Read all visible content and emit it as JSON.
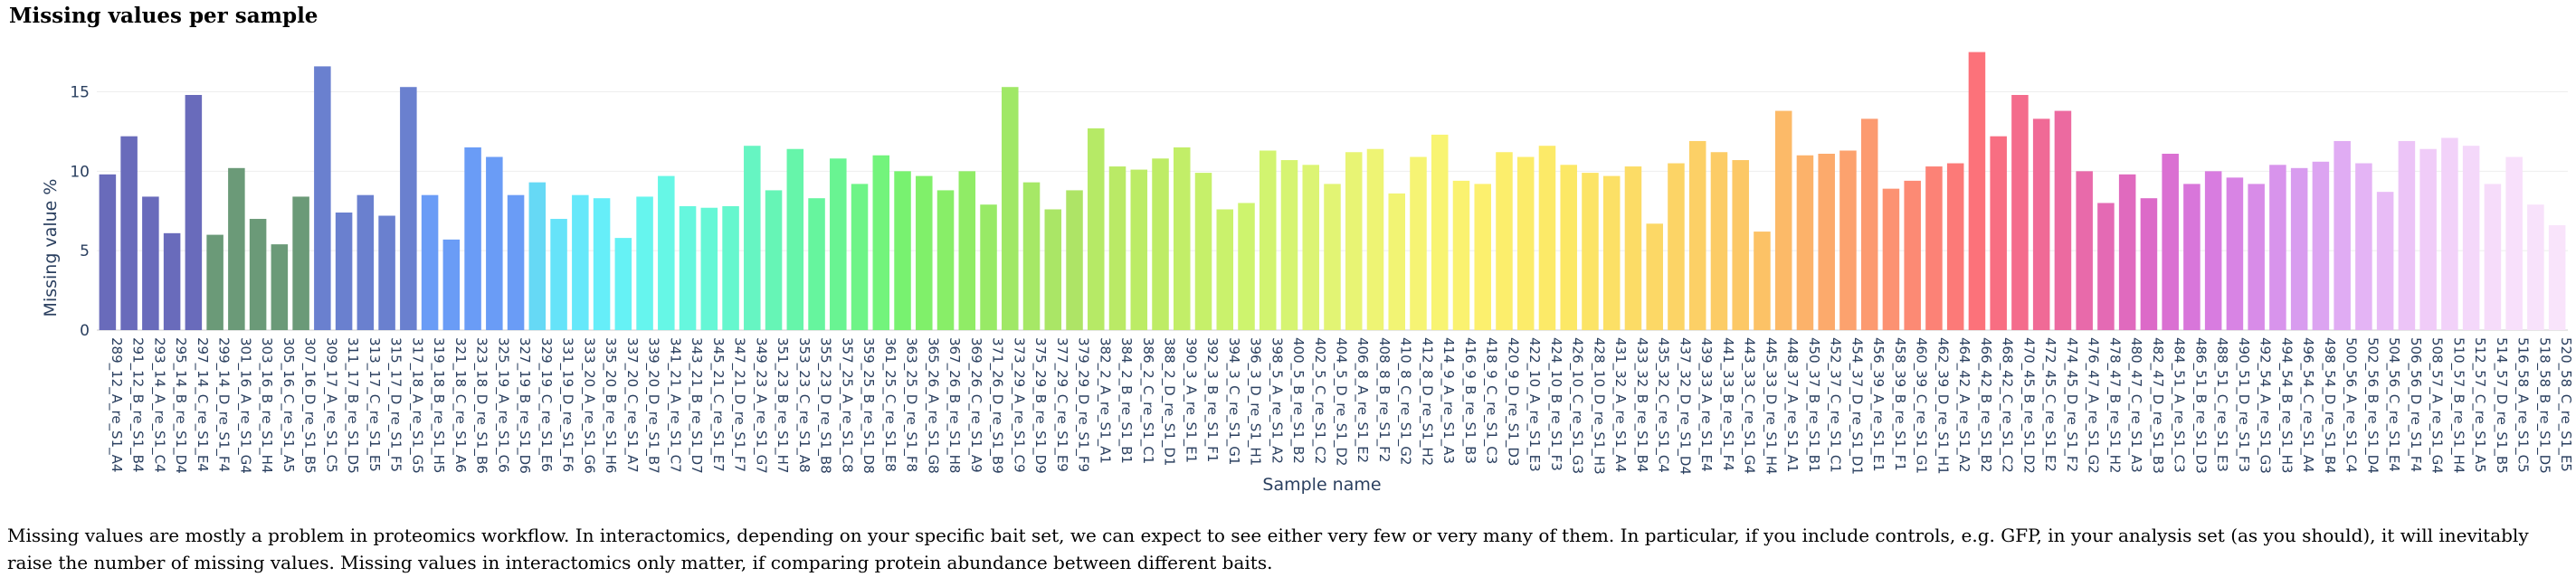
{
  "title": "Missing values per sample",
  "description": "Missing values are mostly a problem in proteomics workflow. In interactomics, depending on your specific bait set, we can expect to see either very few or very many of them. In particular, if you include controls, e.g. GFP, in your analysis set (as you should), it will inevitably raise the number of missing values. Missing values in interactomics only matter, if comparing protein abundance between different baits.",
  "chart_data": {
    "type": "bar",
    "xlabel": "Sample name",
    "ylabel": "Missing value %",
    "ylim": [
      0,
      18.5
    ],
    "yticks": [
      0,
      5,
      10,
      15
    ],
    "grid": true,
    "categories": [
      "289_12_A_re_S1_A4",
      "291_12_B_re_S1_B4",
      "293_14_A_re_S1_C4",
      "295_14_B_re_S1_D4",
      "297_14_C_re_S1_E4",
      "299_14_D_re_S1_F4",
      "301_16_A_re_S1_G4",
      "303_16_B_re_S1_H4",
      "305_16_C_re_S1_A5",
      "307_16_D_re_S1_B5",
      "309_17_A_re_S1_C5",
      "311_17_B_re_S1_D5",
      "313_17_C_re_S1_E5",
      "315_17_D_re_S1_F5",
      "317_18_A_re_S1_G5",
      "319_18_B_re_S1_H5",
      "321_18_C_re_S1_A6",
      "323_18_D_re_S1_B6",
      "325_19_A_re_S1_C6",
      "327_19_B_re_S1_D6",
      "329_19_C_re_S1_E6",
      "331_19_D_re_S1_F6",
      "333_20_A_re_S1_G6",
      "335_20_B_re_S1_H6",
      "337_20_C_re_S1_A7",
      "339_20_D_re_S1_B7",
      "341_21_A_re_S1_C7",
      "343_21_B_re_S1_D7",
      "345_21_C_re_S1_E7",
      "347_21_D_re_S1_F7",
      "349_23_A_re_S1_G7",
      "351_23_B_re_S1_H7",
      "353_23_C_re_S1_A8",
      "355_23_D_re_S1_B8",
      "357_25_A_re_S1_C8",
      "359_25_B_re_S1_D8",
      "361_25_C_re_S1_E8",
      "363_25_D_re_S1_F8",
      "365_26_A_re_S1_G8",
      "367_26_B_re_S1_H8",
      "369_26_C_re_S1_A9",
      "371_26_D_re_S1_B9",
      "373_29_A_re_S1_C9",
      "375_29_B_re_S1_D9",
      "377_29_C_re_S1_E9",
      "379_29_D_re_S1_F9",
      "382_2_A_re_S1_A1",
      "384_2_B_re_S1_B1",
      "386_2_C_re_S1_C1",
      "388_2_D_re_S1_D1",
      "390_3_A_re_S1_E1",
      "392_3_B_re_S1_F1",
      "394_3_C_re_S1_G1",
      "396_3_D_re_S1_H1",
      "398_5_A_re_S1_A2",
      "400_5_B_re_S1_B2",
      "402_5_C_re_S1_C2",
      "404_5_D_re_S1_D2",
      "406_8_A_re_S1_E2",
      "408_8_B_re_S1_F2",
      "410_8_C_re_S1_G2",
      "412_8_D_re_S1_H2",
      "414_9_A_re_S1_A3",
      "416_9_B_re_S1_B3",
      "418_9_C_re_S1_C3",
      "420_9_D_re_S1_D3",
      "422_10_A_re_S1_E3",
      "424_10_B_re_S1_F3",
      "426_10_C_re_S1_G3",
      "428_10_D_re_S1_H3",
      "431_32_A_re_S1_A4",
      "433_32_B_re_S1_B4",
      "435_32_C_re_S1_C4",
      "437_32_D_re_S1_D4",
      "439_33_A_re_S1_E4",
      "441_33_B_re_S1_F4",
      "443_33_C_re_S1_G4",
      "445_33_D_re_S1_H4",
      "448_37_A_re_S1_A1",
      "450_37_B_re_S1_B1",
      "452_37_C_re_S1_C1",
      "454_37_D_re_S1_D1",
      "456_39_A_re_S1_E1",
      "458_39_B_re_S1_F1",
      "460_39_C_re_S1_G1",
      "462_39_D_re_S1_H1",
      "464_42_A_re_S1_A2",
      "466_42_B_re_S1_B2",
      "468_42_C_re_S1_C2",
      "470_45_B_re_S1_D2",
      "472_45_C_re_S1_E2",
      "474_45_D_re_S1_F2",
      "476_47_A_re_S1_G2",
      "478_47_B_re_S1_H2",
      "480_47_C_re_S1_A3",
      "482_47_D_re_S1_B3",
      "484_51_A_re_S1_C3",
      "486_51_B_re_S1_D3",
      "488_51_C_re_S1_E3",
      "490_51_D_re_S1_F3",
      "492_54_A_re_S1_G3",
      "494_54_B_re_S1_H3",
      "496_54_C_re_S1_A4",
      "498_54_D_re_S1_B4",
      "500_56_A_re_S1_C4",
      "502_56_B_re_S1_D4",
      "504_56_C_re_S1_E4",
      "506_56_D_re_S1_F4",
      "508_57_A_re_S1_G4",
      "510_57_B_re_S1_H4",
      "512_57_C_re_S1_A5",
      "514_57_D_re_S1_B5",
      "516_58_A_re_S1_C5",
      "518_58_B_re_S1_D5",
      "520_58_C_re_S1_E5"
    ],
    "values": [
      9.8,
      12.2,
      8.4,
      6.1,
      14.8,
      6.0,
      10.2,
      7.0,
      5.4,
      8.4,
      16.6,
      7.4,
      8.5,
      7.2,
      15.3,
      8.5,
      5.7,
      11.5,
      10.9,
      8.5,
      9.3,
      7.0,
      8.5,
      8.3,
      5.8,
      8.4,
      9.7,
      7.8,
      7.7,
      7.8,
      11.6,
      8.8,
      11.4,
      8.3,
      10.8,
      9.2,
      11.0,
      10.0,
      9.7,
      8.8,
      10.0,
      7.9,
      15.3,
      9.3,
      7.6,
      8.8,
      12.7,
      10.3,
      10.1,
      10.8,
      11.5,
      9.9,
      7.6,
      8.0,
      11.3,
      10.7,
      10.4,
      9.2,
      11.2,
      11.4,
      8.6,
      10.9,
      12.3,
      9.4,
      9.2,
      11.2,
      10.9,
      11.6,
      10.4,
      9.9,
      9.7,
      10.3,
      6.7,
      10.5,
      11.9,
      11.2,
      10.7,
      6.2,
      13.8,
      11.0,
      11.1,
      11.3,
      13.3,
      8.9,
      9.4,
      10.3,
      10.5,
      17.5,
      12.2,
      14.8,
      13.3,
      13.8,
      10.0,
      8.0,
      9.8,
      8.3,
      11.1,
      9.2,
      10.0,
      9.6,
      9.2,
      10.4,
      10.2,
      10.6,
      11.9,
      10.5,
      8.7,
      11.9,
      11.4,
      12.1,
      11.6,
      9.2,
      10.9,
      7.9,
      6.6
    ],
    "colors": [
      "#696bbb",
      "#696bbb",
      "#696bbb",
      "#696bbb",
      "#696bbb",
      "#6b9a78",
      "#6b9a78",
      "#6b9a78",
      "#6b9a78",
      "#6b9a78",
      "#6a80cf",
      "#6a80cf",
      "#6a80cf",
      "#6a80cf",
      "#6a80cf",
      "#6a9cf6",
      "#6a9cf6",
      "#6a9cf6",
      "#6a9cf6",
      "#6a9cf6",
      "#66d9f5",
      "#66e3f9",
      "#66e8fa",
      "#66eef9",
      "#66f2f5",
      "#66f5ee",
      "#66f7e6",
      "#66f7de",
      "#66f7d6",
      "#66f7ce",
      "#66f5c2",
      "#66f5b6",
      "#66f5aa",
      "#66f59e",
      "#69f492",
      "#6ef487",
      "#73f47c",
      "#78f270",
      "#80f06a",
      "#88ee68",
      "#90ec66",
      "#98ea66",
      "#a0e866",
      "#a6e866",
      "#aae666",
      "#aee466",
      "#b6ea66",
      "#baea66",
      "#bcec66",
      "#beec66",
      "#c2ee68",
      "#c6f06a",
      "#caf26c",
      "#cef46e",
      "#d2f470",
      "#d6f472",
      "#dcf474",
      "#e2f474",
      "#e8f474",
      "#eef474",
      "#f2f474",
      "#f6f474",
      "#f8f472",
      "#faf270",
      "#fcf06e",
      "#fcee6c",
      "#fcec6a",
      "#fcea68",
      "#fce866",
      "#fce466",
      "#fce066",
      "#fcdc66",
      "#fcd866",
      "#fcd466",
      "#fcd066",
      "#fccc66",
      "#fcc866",
      "#fcc266",
      "#fcba68",
      "#fcb26a",
      "#fcaa6c",
      "#fca26e",
      "#fc9a70",
      "#fc9272",
      "#fc8a74",
      "#fc8276",
      "#fc7a78",
      "#fc727a",
      "#f86e82",
      "#f46c8c",
      "#f06a96",
      "#ec6aa0",
      "#e86aaa",
      "#e46ab4",
      "#e06abe",
      "#dc6ac8",
      "#da70d2",
      "#d876da",
      "#d87ce0",
      "#d884e4",
      "#d88ce8",
      "#d894ec",
      "#d89cef",
      "#dca4f1",
      "#e0acf3",
      "#e4b4f5",
      "#e8bcf6",
      "#ecc4f7",
      "#f0ccf8",
      "#f2d2f9",
      "#f4d8fa",
      "#f6dcfa",
      "#f8e0fb",
      "#f8e2fb",
      "#f9e4fb"
    ]
  }
}
